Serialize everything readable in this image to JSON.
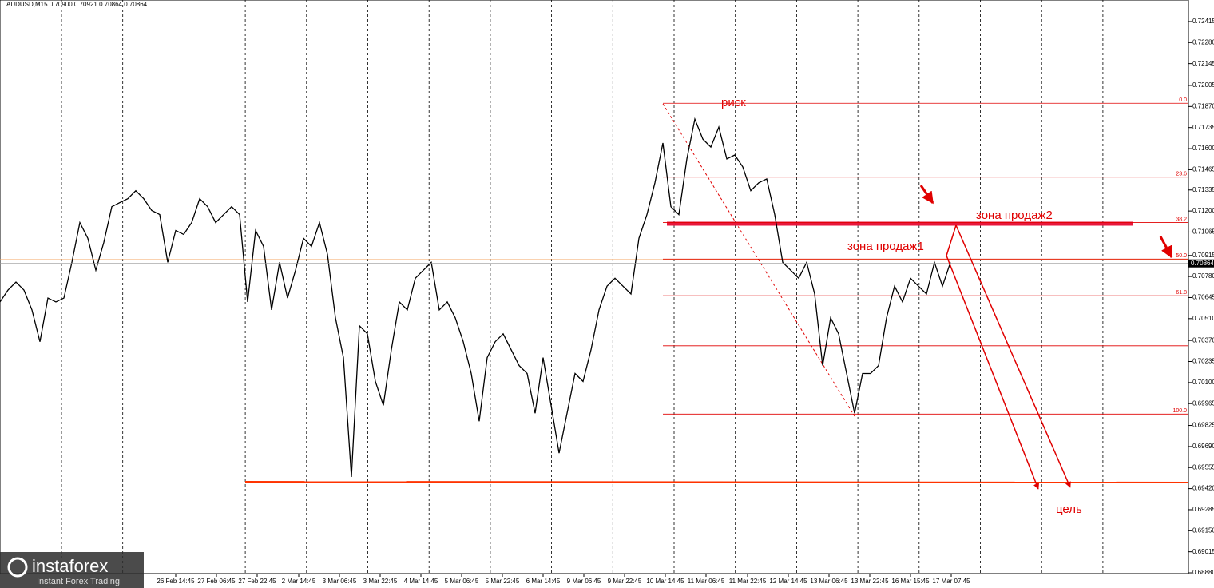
{
  "chart_data": {
    "type": "line",
    "title": "AUDUSD,M15  0.70900 0.70921 0.70864 0.70864",
    "color": "#000000",
    "values": [
      0.70617,
      0.70693,
      0.70744,
      0.70693,
      0.70566,
      0.70362,
      0.70642,
      0.70617,
      0.70642,
      0.70871,
      0.71126,
      0.71025,
      0.7082,
      0.70999,
      0.71228,
      0.71254,
      0.71279,
      0.7133,
      0.71279,
      0.71203,
      0.71177,
      0.70871,
      0.71075,
      0.7105,
      0.71126,
      0.71279,
      0.71228,
      0.71126,
      0.71177,
      0.71228,
      0.71177,
      0.70617,
      0.71075,
      0.70973,
      0.70566,
      0.70871,
      0.70642,
      0.7082,
      0.71025,
      0.70973,
      0.71126,
      0.70922,
      0.70515,
      0.7026,
      0.69495,
      0.70464,
      0.70413,
      0.70107,
      0.69954,
      0.70311,
      0.70617,
      0.70566,
      0.70769,
      0.7082,
      0.70871,
      0.70566,
      0.70617,
      0.70515,
      0.70362,
      0.70158,
      0.69852,
      0.7026,
      0.70362,
      0.70413,
      0.70311,
      0.70209,
      0.70158,
      0.69903,
      0.7026,
      0.69954,
      0.69648,
      0.69903,
      0.70158,
      0.70107,
      0.70311,
      0.70566,
      0.70718,
      0.70769,
      0.70718,
      0.70668,
      0.71025,
      0.71177,
      0.71381,
      0.71636,
      0.71228,
      0.71177,
      0.71534,
      0.71789,
      0.71661,
      0.7161,
      0.71738,
      0.71534,
      0.71559,
      0.71483,
      0.7133,
      0.71381,
      0.71406,
      0.71177,
      0.70871,
      0.7082,
      0.70769,
      0.70871,
      0.70668,
      0.70209,
      0.70515,
      0.70413,
      0.70158,
      0.69903,
      0.70158,
      0.70158,
      0.70209,
      0.70515,
      0.70718,
      0.70617,
      0.70769,
      0.70718,
      0.70668,
      0.70871,
      0.70718,
      0.70871
    ],
    "xlim": [
      0,
      148.8
    ],
    "xticks": [
      {
        "value": 22,
        "label": "26 Feb 14:45"
      },
      {
        "value": 27.1,
        "label": "27 Feb 06:45"
      },
      {
        "value": 32.2,
        "label": "27 Feb 22:45"
      },
      {
        "value": 37.4,
        "label": "2 Mar 14:45"
      },
      {
        "value": 42.5,
        "label": "3 Mar 06:45"
      },
      {
        "value": 47.6,
        "label": "3 Mar 22:45"
      },
      {
        "value": 52.7,
        "label": "4 Mar 14:45"
      },
      {
        "value": 57.8,
        "label": "5 Mar 06:45"
      },
      {
        "value": 62.9,
        "label": "5 Mar 22:45"
      },
      {
        "value": 68,
        "label": "6 Mar 14:45"
      },
      {
        "value": 73.1,
        "label": "9 Mar 06:45"
      },
      {
        "value": 78.2,
        "label": "9 Mar 22:45"
      },
      {
        "value": 83.3,
        "label": "10 Mar 14:45"
      },
      {
        "value": 88.4,
        "label": "11 Mar 06:45"
      },
      {
        "value": 93.6,
        "label": "11 Mar 22:45"
      },
      {
        "value": 98.7,
        "label": "12 Mar 14:45"
      },
      {
        "value": 103.8,
        "label": "13 Mar 06:45"
      },
      {
        "value": 108.9,
        "label": "13 Mar 22:45"
      },
      {
        "value": 114,
        "label": "16 Mar 15:45"
      },
      {
        "value": 119.1,
        "label": "17 Mar 07:45"
      }
    ],
    "ylim": [
      0.68875,
      0.72553
    ],
    "yticks": [
      {
        "value": 0.72415,
        "label": "0.72415"
      },
      {
        "value": 0.7228,
        "label": "0.72280"
      },
      {
        "value": 0.72145,
        "label": "0.72145"
      },
      {
        "value": 0.72005,
        "label": "0.72005"
      },
      {
        "value": 0.7187,
        "label": "0.71870"
      },
      {
        "value": 0.71735,
        "label": "0.71735"
      },
      {
        "value": 0.716,
        "label": "0.71600"
      },
      {
        "value": 0.71465,
        "label": "0.71465"
      },
      {
        "value": 0.71335,
        "label": "0.71335"
      },
      {
        "value": 0.712,
        "label": "0.71200"
      },
      {
        "value": 0.71065,
        "label": "0.71065"
      },
      {
        "value": 0.70915,
        "label": "0.70915"
      },
      {
        "value": 0.7078,
        "label": "0.70780"
      },
      {
        "value": 0.70645,
        "label": "0.70645"
      },
      {
        "value": 0.7051,
        "label": "0.70510"
      },
      {
        "value": 0.7037,
        "label": "0.70370"
      },
      {
        "value": 0.70235,
        "label": "0.70235"
      },
      {
        "value": 0.701,
        "label": "0.70100"
      },
      {
        "value": 0.69965,
        "label": "0.69965"
      },
      {
        "value": 0.69825,
        "label": "0.69825"
      },
      {
        "value": 0.6969,
        "label": "0.69690"
      },
      {
        "value": 0.69555,
        "label": "0.69555"
      },
      {
        "value": 0.6942,
        "label": "0.69420"
      },
      {
        "value": 0.69285,
        "label": "0.69285"
      },
      {
        "value": 0.6915,
        "label": "0.69150"
      },
      {
        "value": 0.69015,
        "label": "0.69015"
      },
      {
        "value": 0.6888,
        "label": "0.68880"
      }
    ],
    "current_price": {
      "value": 0.70864,
      "label": "0.70864"
    },
    "fib_levels": [
      {
        "value": 0.71891,
        "label": "0.0"
      },
      {
        "value": 0.71417,
        "label": "23.6"
      },
      {
        "value": 0.71126,
        "label": "38.2"
      },
      {
        "value": 0.70892,
        "label": "50.0"
      },
      {
        "value": 0.70657,
        "label": "61.8"
      },
      {
        "value": 0.70336,
        "label": null
      },
      {
        "value": 0.69898,
        "label": "100.0"
      }
    ],
    "annotations": [
      "риск",
      "зона продаж2",
      "зона продаж1",
      "цель"
    ],
    "logo": {
      "name": "instaforex",
      "tagline": "Instant Forex Trading"
    }
  }
}
